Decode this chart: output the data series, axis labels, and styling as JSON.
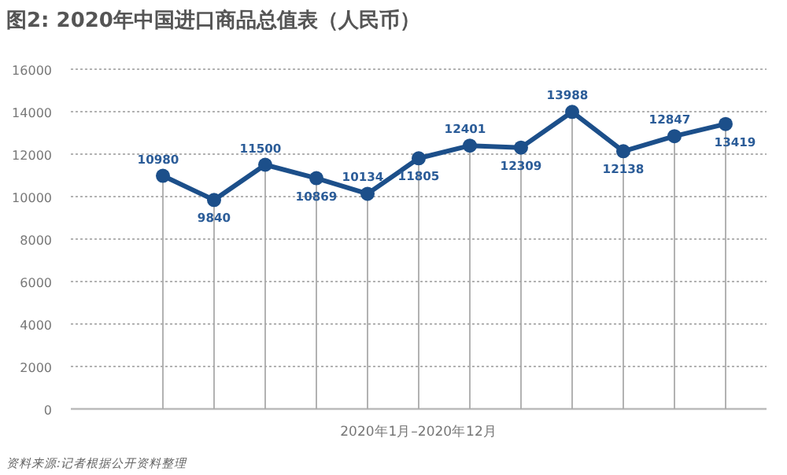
{
  "chart_data": {
    "type": "line",
    "title": "图2: 2020年中国进口商品总值表（人民币）",
    "xlabel": "2020年1月–2020年12月",
    "annotations": [
      "资料来源:记者根据公开资料整理"
    ],
    "categories": [
      null,
      null,
      null,
      null,
      null,
      null,
      null,
      null,
      null,
      null,
      null,
      null
    ],
    "values": [
      10980,
      9840,
      11500,
      10869,
      10134,
      11805,
      12401,
      12309,
      13988,
      12138,
      12847,
      13419
    ],
    "color": "#1c4f8a",
    "marker": "circle",
    "data_labels": true,
    "grid": true,
    "ylim": [
      0,
      16000
    ],
    "yticks": [
      0,
      2000,
      4000,
      6000,
      8000,
      10000,
      12000,
      14000,
      16000
    ]
  }
}
